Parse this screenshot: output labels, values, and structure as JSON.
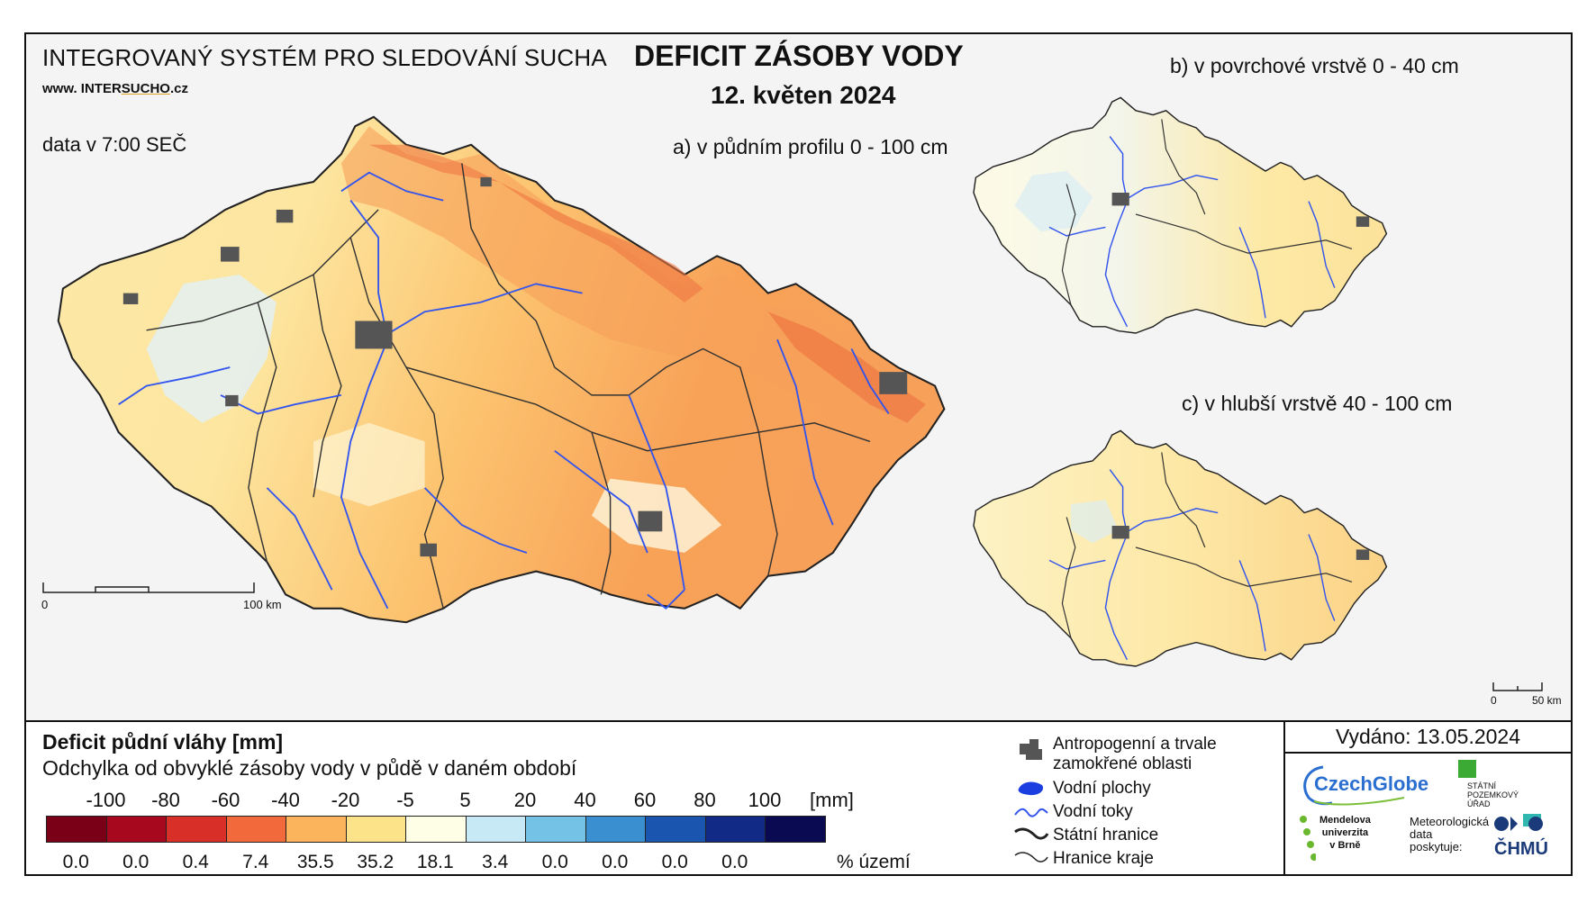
{
  "header": {
    "system_name": "INTEGROVANÝ SYSTÉM PRO SLEDOVÁNÍ SUCHA",
    "website_prefix": "www. INTER",
    "website_sucho": "SUCHO",
    "website_suffix": ".cz",
    "data_time": "data v 7:00 SEČ",
    "title": "DEFICIT ZÁSOBY VODY",
    "date": "12. květen 2024"
  },
  "maps": {
    "main_label": "a) v půdním profilu 0 - 100 cm",
    "surface_label": "b) v povrchové vrstvě 0 - 40 cm",
    "deep_label": "c) v hlubší vrstvě 40 - 100 cm",
    "main_scale": {
      "start": "0",
      "end": "100 km"
    },
    "small_scale": {
      "start": "0",
      "end": "50 km"
    }
  },
  "legend": {
    "title": "Deficit půdní vláhy  [mm]",
    "subtitle": "Odchylka od obvyklé zásoby vody v půdě v daném období",
    "unit": "[mm]",
    "percent_label": "% území",
    "breaks": [
      "-100",
      "-80",
      "-60",
      "-40",
      "-20",
      "-5",
      "5",
      "20",
      "40",
      "60",
      "80",
      "100"
    ],
    "classes": [
      {
        "color": "#7a0018",
        "percent": "0.0"
      },
      {
        "color": "#a8081e",
        "percent": "0.0"
      },
      {
        "color": "#d83028",
        "percent": "0.4"
      },
      {
        "color": "#f26a3c",
        "percent": "7.4"
      },
      {
        "color": "#fbb45c",
        "percent": "35.5"
      },
      {
        "color": "#fce38a",
        "percent": "35.2"
      },
      {
        "color": "#fefde6",
        "percent": "18.1"
      },
      {
        "color": "#c7e8f5",
        "percent": "3.4"
      },
      {
        "color": "#74c2e6",
        "percent": "0.0"
      },
      {
        "color": "#3a8fd0",
        "percent": "0.0"
      },
      {
        "color": "#1a55b0",
        "percent": "0.0"
      },
      {
        "color": "#102a86",
        "percent": "0.0"
      },
      {
        "color": "#0a0a52",
        "percent": ""
      }
    ]
  },
  "symbols": {
    "urban": "Antropogenní a trvale\nzamokřené oblasti",
    "water_bodies": "Vodní plochy",
    "rivers": "Vodní toky",
    "state_border": "Státní hranice",
    "region_border": "Hranice kraje"
  },
  "footer": {
    "issued": "Vydáno: 13.05.2024",
    "logos": {
      "czechglobe": "CzechGlobe",
      "spu": "STÁTNÍ\nPOZEMKOVÝ\nÚŘAD",
      "mendelu": "Mendelova\nuniverzita\nv Brně",
      "meteo": "Meteorologická\ndata\nposkytuje:",
      "chmu": "ČHMÚ"
    }
  },
  "colors": {
    "river": "#3355ee",
    "urban": "#555555",
    "border": "#222222"
  }
}
